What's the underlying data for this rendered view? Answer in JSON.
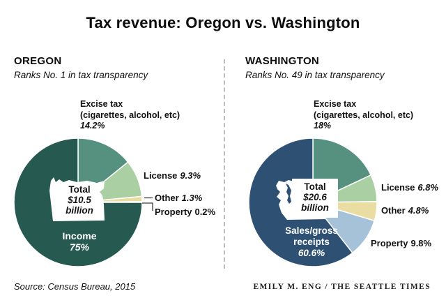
{
  "title": "Tax revenue: Oregon vs. Washington",
  "footer": {
    "source": "Source: Census Bureau, 2015",
    "credit": "EMILY M. ENG / THE SEATTLE TIMES"
  },
  "chart_data": [
    {
      "type": "pie",
      "title": "OREGON",
      "subtitle": "Ranks No. 1 in tax transparency",
      "total": "$10.5 billion",
      "center_label": {
        "line1": "Total",
        "line2": "$10.5",
        "line3": "billion"
      },
      "legend_position": "around-pie",
      "start_angle_deg": 0,
      "direction": "clockwise-from-top",
      "slices": [
        {
          "name": "Excise tax",
          "name2": "(cigarettes, alcohol, etc)",
          "pct": 14.2,
          "pct_label": "14.2%",
          "color": "#569180"
        },
        {
          "name": "License",
          "pct": 9.3,
          "pct_label": "9.3%",
          "color": "#a9cfa3"
        },
        {
          "name": "Other",
          "pct": 1.3,
          "pct_label": "1.3%",
          "color": "#eadda2"
        },
        {
          "name": "Property",
          "pct": 0.2,
          "pct_label": "0.2%",
          "color": "#f0efe8"
        },
        {
          "name": "Income",
          "pct": 75,
          "pct_label": "75%",
          "color": "#265a50"
        }
      ]
    },
    {
      "type": "pie",
      "title": "WASHINGTON",
      "subtitle": "Ranks No. 49 in tax transparency",
      "total": "$20.6 billion",
      "center_label": {
        "line1": "Total",
        "line2": "$20.6",
        "line3": "billion"
      },
      "legend_position": "around-pie",
      "start_angle_deg": 0,
      "direction": "clockwise-from-top",
      "slices": [
        {
          "name": "Excise tax",
          "name2": "(cigarettes, alcohol, etc)",
          "pct": 18,
          "pct_label": "18%",
          "color": "#569180"
        },
        {
          "name": "License",
          "pct": 6.8,
          "pct_label": "6.8%",
          "color": "#a9cfa3"
        },
        {
          "name": "Other",
          "pct": 4.8,
          "pct_label": "4.8%",
          "color": "#eadda2"
        },
        {
          "name": "Property",
          "pct": 9.8,
          "pct_label": "9.8%",
          "color": "#a6c2d8"
        },
        {
          "name": "Sales/gross receipts",
          "pct": 60.6,
          "pct_label": "60.6%",
          "color": "#2e5173"
        }
      ]
    }
  ]
}
